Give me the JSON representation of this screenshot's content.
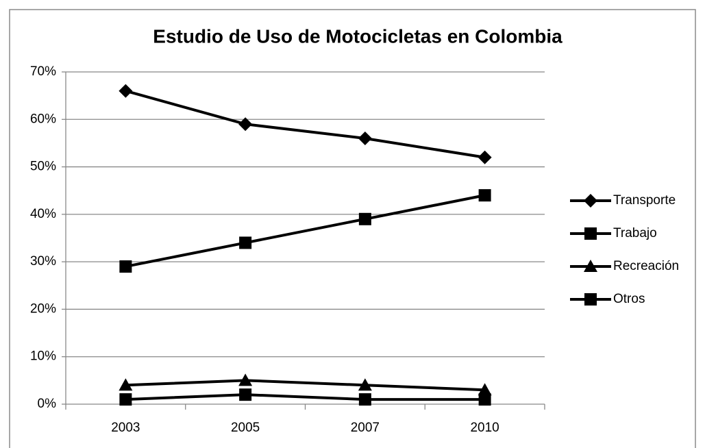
{
  "chart_data": {
    "type": "line",
    "title": "Estudio de Uso de Motocicletas en Colombia",
    "categories": [
      "2003",
      "2005",
      "2007",
      "2010"
    ],
    "series": [
      {
        "name": "Transporte",
        "color": "#000000",
        "marker": "diamond",
        "values": [
          66,
          59,
          56,
          52
        ]
      },
      {
        "name": "Trabajo",
        "color": "#000000",
        "marker": "square",
        "values": [
          29,
          34,
          39,
          44
        ]
      },
      {
        "name": "Recreación",
        "color": "#000000",
        "marker": "triangle",
        "values": [
          4,
          5,
          4,
          3
        ]
      },
      {
        "name": "Otros",
        "color": "#000000",
        "marker": "square",
        "values": [
          1,
          2,
          1,
          1
        ]
      }
    ],
    "ylim": [
      0,
      70
    ],
    "yticks": [
      {
        "value": 0,
        "label": "0%"
      },
      {
        "value": 10,
        "label": "10%"
      },
      {
        "value": 20,
        "label": "20%"
      },
      {
        "value": 30,
        "label": "30%"
      },
      {
        "value": 40,
        "label": "40%"
      },
      {
        "value": 50,
        "label": "50%"
      },
      {
        "value": 60,
        "label": "60%"
      },
      {
        "value": 70,
        "label": "70%"
      }
    ],
    "grid": true,
    "legend": "right"
  }
}
